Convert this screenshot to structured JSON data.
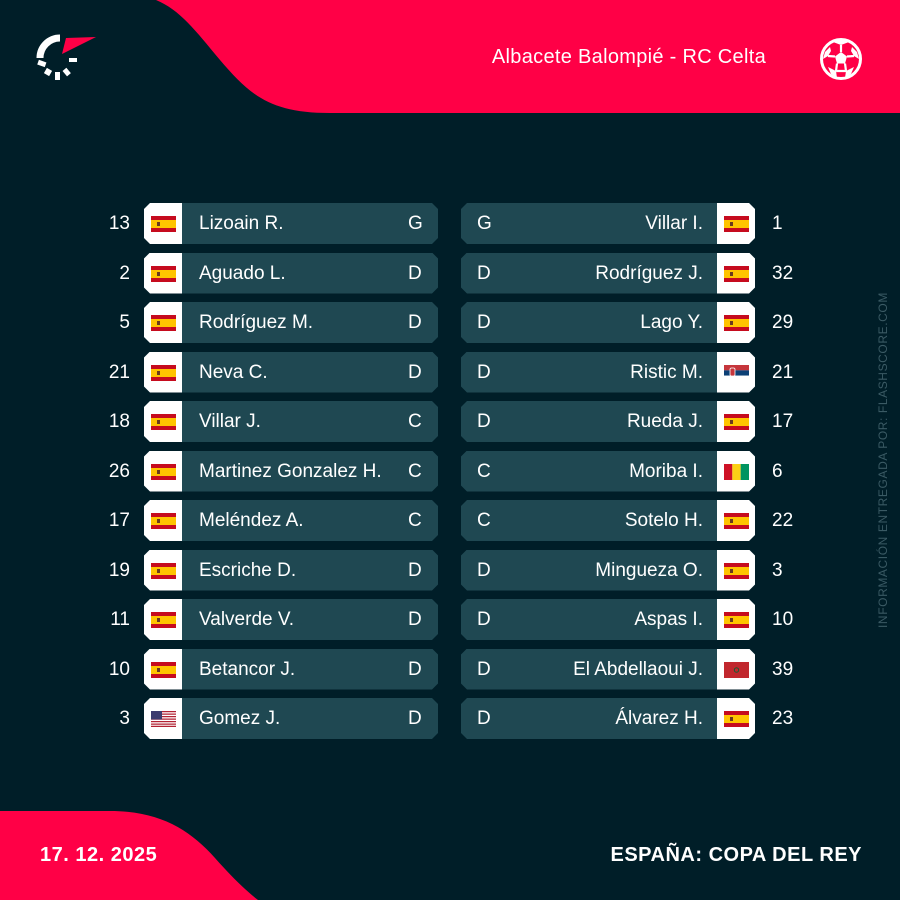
{
  "header": {
    "match_title": "Albacete Balompié - RC Celta",
    "logo": "flashscore-logo-icon",
    "sport_icon": "football-icon"
  },
  "colors": {
    "background": "#001e28",
    "accent": "#ff0046",
    "card": "#1f4852",
    "flag_box": "#ffffff",
    "credit_text": "#3a5a64"
  },
  "home_team": {
    "name": "Albacete Balompié",
    "players": [
      {
        "number": "13",
        "name": "Lizoain R.",
        "position": "G",
        "flag": "spain"
      },
      {
        "number": "2",
        "name": "Aguado L.",
        "position": "D",
        "flag": "spain"
      },
      {
        "number": "5",
        "name": "Rodríguez M.",
        "position": "D",
        "flag": "spain"
      },
      {
        "number": "21",
        "name": "Neva C.",
        "position": "D",
        "flag": "spain"
      },
      {
        "number": "18",
        "name": "Villar J.",
        "position": "C",
        "flag": "spain"
      },
      {
        "number": "26",
        "name": "Martinez Gonzalez H.",
        "position": "C",
        "flag": "spain"
      },
      {
        "number": "17",
        "name": "Meléndez A.",
        "position": "C",
        "flag": "spain"
      },
      {
        "number": "19",
        "name": "Escriche D.",
        "position": "D",
        "flag": "spain"
      },
      {
        "number": "11",
        "name": "Valverde V.",
        "position": "D",
        "flag": "spain"
      },
      {
        "number": "10",
        "name": "Betancor J.",
        "position": "D",
        "flag": "spain"
      },
      {
        "number": "3",
        "name": "Gomez J.",
        "position": "D",
        "flag": "usa"
      }
    ]
  },
  "away_team": {
    "name": "RC Celta",
    "players": [
      {
        "number": "1",
        "name": "Villar I.",
        "position": "G",
        "flag": "spain"
      },
      {
        "number": "32",
        "name": "Rodríguez J.",
        "position": "D",
        "flag": "spain"
      },
      {
        "number": "29",
        "name": "Lago Y.",
        "position": "D",
        "flag": "spain"
      },
      {
        "number": "21",
        "name": "Ristic M.",
        "position": "D",
        "flag": "serbia"
      },
      {
        "number": "17",
        "name": "Rueda J.",
        "position": "D",
        "flag": "spain"
      },
      {
        "number": "6",
        "name": "Moriba I.",
        "position": "C",
        "flag": "guinea"
      },
      {
        "number": "22",
        "name": "Sotelo H.",
        "position": "C",
        "flag": "spain"
      },
      {
        "number": "3",
        "name": "Mingueza O.",
        "position": "D",
        "flag": "spain"
      },
      {
        "number": "10",
        "name": "Aspas I.",
        "position": "D",
        "flag": "spain"
      },
      {
        "number": "39",
        "name": "El Abdellaoui J.",
        "position": "D",
        "flag": "morocco"
      },
      {
        "number": "23",
        "name": "Álvarez H.",
        "position": "D",
        "flag": "spain"
      }
    ]
  },
  "footer": {
    "date": "17. 12. 2025",
    "competition": "ESPAÑA: COPA DEL REY"
  },
  "credit": "INFORMACIÓN ENTREGADA POR: FLASHSCORE.COM"
}
